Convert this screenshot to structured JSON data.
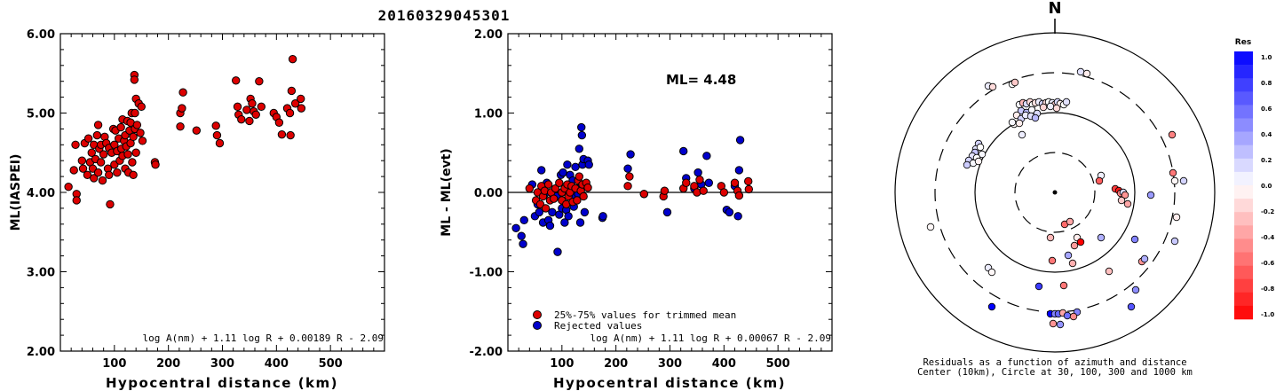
{
  "title": "20160329045301",
  "charts": {
    "left": {
      "ylabel": "ML(IASPEI)",
      "xlabel": "Hypocentral distance (km)",
      "formula": "log A(nm) + 1.11 log R + 0.00189 R - 2.09",
      "yticks": [
        "2.00",
        "3.00",
        "4.00",
        "5.00",
        "6.00"
      ],
      "xticks": [
        "100",
        "200",
        "300",
        "400",
        "500"
      ]
    },
    "middle": {
      "ylabel": "ML - ML(evt)",
      "xlabel": "Hypocentral distance (km)",
      "ml_label": "ML= 4.48",
      "formula": "log A(nm) + 1.11 log R + 0.00067 R - 2.09",
      "legend_trimmed": "25%-75% values for trimmed mean",
      "legend_rejected": "Rejected values",
      "yticks": [
        "-2.00",
        "-1.00",
        "0.00",
        "1.00",
        "2.00"
      ],
      "xticks": [
        "100",
        "200",
        "300",
        "400",
        "500"
      ]
    },
    "polar": {
      "north": "N",
      "caption_line1": "Residuals as a function of azimuth and distance",
      "caption_line2": "Center (10km), Circle at 30, 100, 300 and 1000 km"
    },
    "colorbar": {
      "title": "Res",
      "ticks": [
        "1.0",
        "0.8",
        "0.6",
        "0.4",
        "0.2",
        "0.0",
        "-0.2",
        "-0.4",
        "-0.6",
        "-0.8",
        "-1.0"
      ]
    }
  },
  "colors": {
    "accepted": "#dd0000",
    "rejected": "#0000cc",
    "axis": "#000000"
  },
  "chart_data": [
    {
      "type": "scatter",
      "title": "20160329045301",
      "xlabel": "Hypocentral distance (km)",
      "ylabel": "ML(IASPEI)",
      "xlim": [
        0,
        600
      ],
      "ylim": [
        2.0,
        6.0
      ],
      "series": [
        {
          "points": [
            [
              15,
              4.07
            ],
            [
              25,
              4.28
            ],
            [
              28,
              4.6
            ],
            [
              30,
              3.98
            ],
            [
              30,
              3.9
            ],
            [
              40,
              4.4
            ],
            [
              42,
              4.3
            ],
            [
              45,
              4.62
            ],
            [
              50,
              4.22
            ],
            [
              52,
              4.68
            ],
            [
              55,
              4.38
            ],
            [
              58,
              4.5
            ],
            [
              60,
              4.3
            ],
            [
              62,
              4.6
            ],
            [
              62,
              4.18
            ],
            [
              65,
              4.42
            ],
            [
              68,
              4.72
            ],
            [
              70,
              4.85
            ],
            [
              70,
              4.25
            ],
            [
              72,
              4.55
            ],
            [
              75,
              4.6
            ],
            [
              75,
              4.38
            ],
            [
              78,
              4.15
            ],
            [
              80,
              4.48
            ],
            [
              82,
              4.7
            ],
            [
              85,
              4.62
            ],
            [
              88,
              4.3
            ],
            [
              90,
              4.22
            ],
            [
              90,
              4.56
            ],
            [
              92,
              3.85
            ],
            [
              95,
              4.5
            ],
            [
              98,
              4.8
            ],
            [
              100,
              4.6
            ],
            [
              100,
              4.35
            ],
            [
              102,
              4.78
            ],
            [
              105,
              4.52
            ],
            [
              105,
              4.25
            ],
            [
              108,
              4.68
            ],
            [
              110,
              4.4
            ],
            [
              112,
              4.82
            ],
            [
              113,
              4.55
            ],
            [
              115,
              4.92
            ],
            [
              115,
              4.46
            ],
            [
              118,
              4.65
            ],
            [
              120,
              4.3
            ],
            [
              120,
              4.72
            ],
            [
              122,
              4.58
            ],
            [
              124,
              4.9
            ],
            [
              125,
              4.48
            ],
            [
              126,
              4.25
            ],
            [
              128,
              4.78
            ],
            [
              130,
              4.88
            ],
            [
              130,
              4.62
            ],
            [
              132,
              5.0
            ],
            [
              133,
              4.38
            ],
            [
              135,
              4.7
            ],
            [
              135,
              4.22
            ],
            [
              137,
              5.48
            ],
            [
              137,
              5.42
            ],
            [
              138,
              4.8
            ],
            [
              138,
              5.0
            ],
            [
              140,
              5.18
            ],
            [
              140,
              4.5
            ],
            [
              142,
              4.85
            ],
            [
              145,
              5.12
            ],
            [
              148,
              4.75
            ],
            [
              150,
              5.08
            ],
            [
              152,
              4.65
            ],
            [
              175,
              4.38
            ],
            [
              176,
              4.35
            ],
            [
              222,
              4.83
            ],
            [
              222,
              5.0
            ],
            [
              225,
              5.06
            ],
            [
              227,
              5.26
            ],
            [
              252,
              4.78
            ],
            [
              288,
              4.84
            ],
            [
              290,
              4.72
            ],
            [
              295,
              4.62
            ],
            [
              325,
              5.41
            ],
            [
              328,
              5.08
            ],
            [
              330,
              4.98
            ],
            [
              335,
              4.92
            ],
            [
              345,
              5.04
            ],
            [
              350,
              4.9
            ],
            [
              352,
              5.18
            ],
            [
              355,
              5.12
            ],
            [
              358,
              5.02
            ],
            [
              362,
              4.98
            ],
            [
              368,
              5.4
            ],
            [
              372,
              5.08
            ],
            [
              395,
              5.0
            ],
            [
              400,
              4.95
            ],
            [
              405,
              4.88
            ],
            [
              410,
              4.73
            ],
            [
              420,
              5.06
            ],
            [
              425,
              5.0
            ],
            [
              426,
              4.72
            ],
            [
              428,
              5.28
            ],
            [
              430,
              5.68
            ],
            [
              435,
              5.12
            ],
            [
              445,
              5.18
            ],
            [
              446,
              5.06
            ]
          ]
        }
      ]
    },
    {
      "type": "scatter",
      "xlabel": "Hypocentral distance (km)",
      "ylabel": "ML - ML(evt)",
      "xlim": [
        0,
        600
      ],
      "ylim": [
        -2.0,
        2.0
      ],
      "series": [
        {
          "name": "25%-75% values for trimmed mean",
          "points": [
            [
              40,
              0.05
            ],
            [
              52,
              -0.1
            ],
            [
              55,
              0.0
            ],
            [
              60,
              -0.15
            ],
            [
              62,
              0.08
            ],
            [
              65,
              -0.05
            ],
            [
              68,
              0.02
            ],
            [
              70,
              -0.2
            ],
            [
              75,
              0.1
            ],
            [
              78,
              -0.1
            ],
            [
              80,
              0.0
            ],
            [
              85,
              -0.08
            ],
            [
              88,
              0.05
            ],
            [
              95,
              0.12
            ],
            [
              100,
              -0.1
            ],
            [
              100,
              0.0
            ],
            [
              105,
              0.05
            ],
            [
              108,
              -0.15
            ],
            [
              110,
              0.1
            ],
            [
              112,
              -0.05
            ],
            [
              115,
              0.0
            ],
            [
              118,
              0.08
            ],
            [
              120,
              -0.12
            ],
            [
              125,
              0.05
            ],
            [
              128,
              -0.1
            ],
            [
              130,
              0.15
            ],
            [
              132,
              0.2
            ],
            [
              135,
              0.02
            ],
            [
              138,
              0.1
            ],
            [
              140,
              -0.05
            ],
            [
              145,
              0.12
            ],
            [
              148,
              0.06
            ],
            [
              222,
              0.08
            ],
            [
              225,
              0.2
            ],
            [
              252,
              -0.02
            ],
            [
              288,
              -0.05
            ],
            [
              290,
              0.02
            ],
            [
              325,
              0.05
            ],
            [
              330,
              0.12
            ],
            [
              345,
              0.08
            ],
            [
              350,
              0.0
            ],
            [
              355,
              0.16
            ],
            [
              362,
              0.02
            ],
            [
              395,
              0.08
            ],
            [
              400,
              0.0
            ],
            [
              420,
              0.12
            ],
            [
              425,
              0.02
            ],
            [
              428,
              -0.04
            ],
            [
              445,
              0.14
            ],
            [
              446,
              0.04
            ]
          ]
        },
        {
          "name": "Rejected values",
          "points": [
            [
              15,
              -0.45
            ],
            [
              25,
              -0.55
            ],
            [
              28,
              -0.65
            ],
            [
              30,
              -0.35
            ],
            [
              45,
              0.1
            ],
            [
              50,
              -0.3
            ],
            [
              55,
              -0.15
            ],
            [
              58,
              -0.25
            ],
            [
              62,
              0.28
            ],
            [
              65,
              -0.38
            ],
            [
              68,
              -0.02
            ],
            [
              72,
              0.12
            ],
            [
              75,
              -0.35
            ],
            [
              78,
              -0.42
            ],
            [
              82,
              -0.25
            ],
            [
              90,
              -0.05
            ],
            [
              92,
              -0.75
            ],
            [
              95,
              -0.28
            ],
            [
              98,
              0.22
            ],
            [
              100,
              -0.2
            ],
            [
              102,
              0.25
            ],
            [
              105,
              -0.38
            ],
            [
              108,
              -0.22
            ],
            [
              110,
              0.35
            ],
            [
              112,
              -0.3
            ],
            [
              115,
              0.22
            ],
            [
              118,
              -0.05
            ],
            [
              120,
              0.15
            ],
            [
              122,
              -0.18
            ],
            [
              125,
              0.32
            ],
            [
              128,
              0.05
            ],
            [
              130,
              -0.02
            ],
            [
              132,
              0.55
            ],
            [
              134,
              -0.38
            ],
            [
              136,
              0.82
            ],
            [
              137,
              0.72
            ],
            [
              138,
              0.35
            ],
            [
              140,
              0.42
            ],
            [
              142,
              -0.25
            ],
            [
              148,
              0.4
            ],
            [
              150,
              0.35
            ],
            [
              175,
              -0.32
            ],
            [
              176,
              -0.3
            ],
            [
              222,
              0.3
            ],
            [
              227,
              0.48
            ],
            [
              252,
              -0.02
            ],
            [
              295,
              -0.25
            ],
            [
              325,
              0.52
            ],
            [
              330,
              0.18
            ],
            [
              345,
              0.05
            ],
            [
              352,
              0.25
            ],
            [
              358,
              0.1
            ],
            [
              368,
              0.46
            ],
            [
              372,
              0.12
            ],
            [
              405,
              -0.22
            ],
            [
              410,
              -0.25
            ],
            [
              420,
              0.08
            ],
            [
              426,
              -0.3
            ],
            [
              428,
              0.28
            ],
            [
              430,
              0.66
            ]
          ]
        }
      ],
      "reference_line": 0.0,
      "annotation": "ML= 4.48"
    }
  ]
}
